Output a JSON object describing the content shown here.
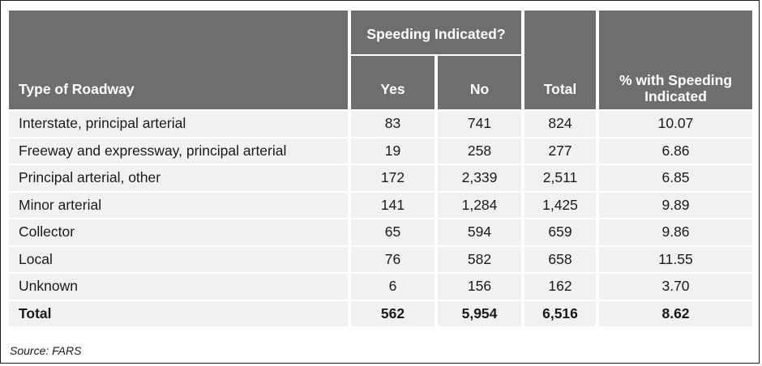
{
  "table": {
    "headers": {
      "type": "Type of Roadway",
      "group": "Speeding Indicated?",
      "yes": "Yes",
      "no": "No",
      "total": "Total",
      "pct": "% with Speeding Indicated"
    },
    "rows": [
      {
        "type": "Interstate, principal arterial",
        "yes": "83",
        "no": "741",
        "total": "824",
        "pct": "10.07"
      },
      {
        "type": "Freeway and expressway, principal arterial",
        "yes": "19",
        "no": "258",
        "total": "277",
        "pct": "6.86"
      },
      {
        "type": "Principal arterial, other",
        "yes": "172",
        "no": "2,339",
        "total": "2,511",
        "pct": "6.85"
      },
      {
        "type": "Minor arterial",
        "yes": "141",
        "no": "1,284",
        "total": "1,425",
        "pct": "9.89"
      },
      {
        "type": "Collector",
        "yes": "65",
        "no": "594",
        "total": "659",
        "pct": "9.86"
      },
      {
        "type": "Local",
        "yes": "76",
        "no": "582",
        "total": "658",
        "pct": "11.55"
      },
      {
        "type": "Unknown",
        "yes": "6",
        "no": "156",
        "total": "162",
        "pct": "3.70"
      },
      {
        "type": "Total",
        "yes": "562",
        "no": "5,954",
        "total": "6,516",
        "pct": "8.62"
      }
    ]
  },
  "source": "Source: FARS",
  "colors": {
    "header_bg": "#6e6e70",
    "row_bg": "#f1f1f1"
  }
}
